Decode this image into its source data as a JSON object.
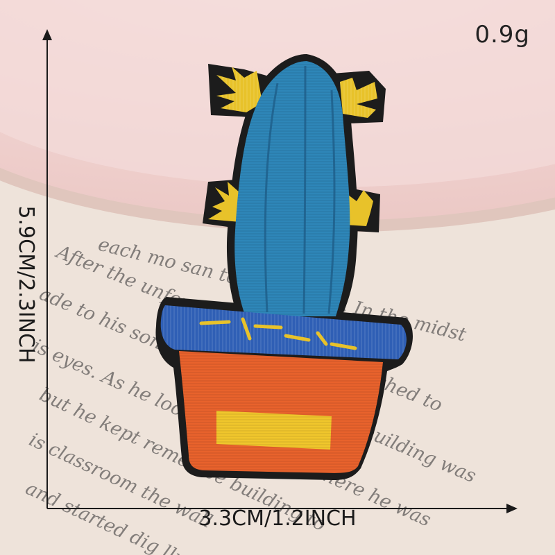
{
  "product": {
    "weight": "0.9g",
    "height_label": "5.9CM/2.3INCH",
    "width_label": "3.3CM/1.2INCH",
    "subject": "embroidered cactus patch in orange pot"
  },
  "background_text_lines": [
    "each mo   san to   ar minutes. In the midst",
    "After the unfor   afely at home and rushed to",
    "ade to his son: \"No   disc   ade that the building was",
    "is eyes.  As he looked at   awards where he was",
    "but he kept remembe   building to",
    "is classroom   the wall",
    "and started dig   lly"
  ],
  "colors": {
    "plate": "#f2d9d6",
    "paper": "#efe3da",
    "cactus_blue": "#2e86b8",
    "pot_orange": "#e8622c",
    "pot_rim_blue": "#2f5fb5",
    "arm_yellow": "#e8c22a",
    "outline": "#1c1c1c"
  }
}
